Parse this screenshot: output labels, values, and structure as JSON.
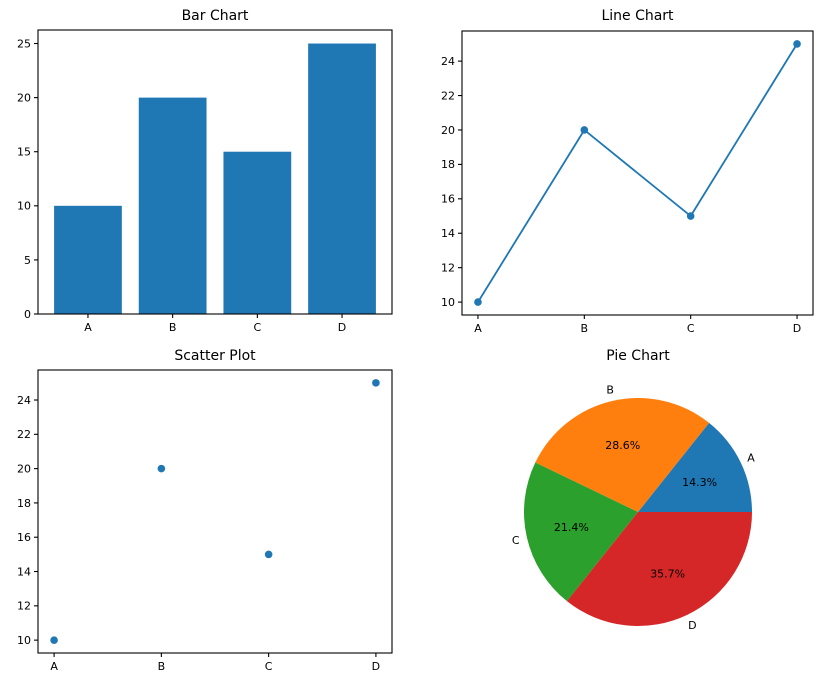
{
  "figure": {
    "background": "#ffffff",
    "text_color": "#000000",
    "axes_color": "#000000"
  },
  "chart_data": [
    {
      "type": "bar",
      "title": "Bar Chart",
      "categories": [
        "A",
        "B",
        "C",
        "D"
      ],
      "values": [
        10,
        20,
        15,
        25
      ],
      "yticks": [
        0,
        5,
        10,
        15,
        20,
        25
      ],
      "ylim": [
        0,
        26.25
      ],
      "xlabel": "",
      "ylabel": "",
      "grid": false,
      "bar_color": "#1f77b4"
    },
    {
      "type": "line",
      "title": "Line Chart",
      "categories": [
        "A",
        "B",
        "C",
        "D"
      ],
      "values": [
        10,
        20,
        15,
        25
      ],
      "yticks": [
        10,
        12,
        14,
        16,
        18,
        20,
        22,
        24
      ],
      "ylim": [
        9.25,
        25.75
      ],
      "xlabel": "",
      "ylabel": "",
      "grid": false,
      "marker": "o",
      "line_color": "#1f77b4"
    },
    {
      "type": "scatter",
      "title": "Scatter Plot",
      "categories": [
        "A",
        "B",
        "C",
        "D"
      ],
      "values": [
        10,
        20,
        15,
        25
      ],
      "yticks": [
        10,
        12,
        14,
        16,
        18,
        20,
        22,
        24
      ],
      "ylim": [
        9.25,
        25.75
      ],
      "xlabel": "",
      "ylabel": "",
      "grid": false,
      "point_color": "#1f77b4"
    },
    {
      "type": "pie",
      "title": "Pie Chart",
      "labels": [
        "A",
        "B",
        "C",
        "D"
      ],
      "values": [
        10,
        20,
        15,
        25
      ],
      "percent_labels": [
        "14.3%",
        "28.6%",
        "21.4%",
        "35.7%"
      ],
      "slice_colors": [
        "#1f77b4",
        "#ff7f0e",
        "#2ca02c",
        "#d62728"
      ],
      "start_angle": 0,
      "direction": "counterclockwise",
      "label_distance": 1.1,
      "pct_distance": 0.6
    }
  ]
}
